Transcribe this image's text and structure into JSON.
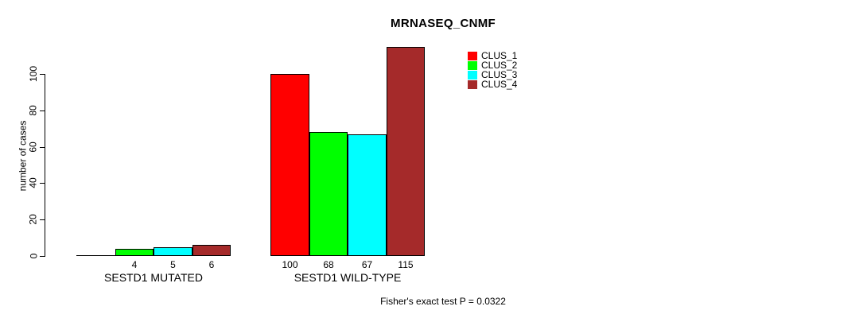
{
  "chart_data": {
    "type": "bar",
    "title": "MRNASEQ_CNMF",
    "ylabel": "number of cases",
    "xlabel": "",
    "ylim": [
      0,
      115
    ],
    "yticks": [
      0,
      20,
      40,
      60,
      80,
      100
    ],
    "grid": false,
    "legend_position": "top-right",
    "legend": [
      {
        "label": "CLUS_1",
        "color": "#FF0000"
      },
      {
        "label": "CLUS_2",
        "color": "#00FF00"
      },
      {
        "label": "CLUS_3",
        "color": "#00FFFF"
      },
      {
        "label": "CLUS_4",
        "color": "#A52A2A"
      }
    ],
    "groups": [
      {
        "label": "SESTD1 MUTATED",
        "values": [
          0,
          4,
          5,
          6
        ],
        "value_labels": [
          "",
          "4",
          "5",
          "6"
        ]
      },
      {
        "label": "SESTD1 WILD-TYPE",
        "values": [
          100,
          68,
          67,
          115
        ],
        "value_labels": [
          "100",
          "68",
          "67",
          "115"
        ]
      }
    ],
    "annotation": "Fisher's exact test P = 0.0322"
  }
}
